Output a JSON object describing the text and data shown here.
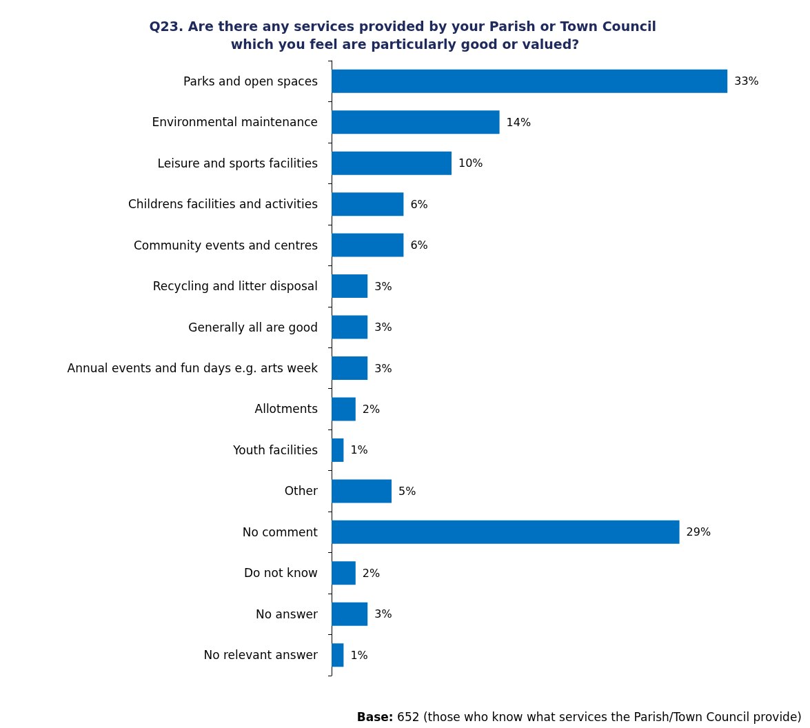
{
  "chart_data": {
    "type": "bar",
    "orientation": "horizontal",
    "title": "Q23. Are there any services provided by your Parish or Town Council which you feel are particularly good or valued?",
    "categories": [
      "Parks and open spaces",
      "Environmental maintenance",
      "Leisure and sports facilities",
      "Childrens facilities and activities",
      "Community events and centres",
      "Recycling and litter disposal",
      "Generally all are good",
      "Annual events and fun days e.g. arts week",
      "Allotments",
      "Youth facilities",
      "Other",
      "No comment",
      "Do not know",
      "No answer",
      "No relevant answer"
    ],
    "values": [
      33,
      14,
      10,
      6,
      6,
      3,
      3,
      3,
      2,
      1,
      5,
      29,
      2,
      3,
      1
    ],
    "value_labels": [
      "33%",
      "14%",
      "10%",
      "6%",
      "6%",
      "3%",
      "3%",
      "3%",
      "2%",
      "1%",
      "5%",
      "29%",
      "2%",
      "3%",
      "1%"
    ],
    "color": "#0070c0",
    "grid": false,
    "annotations": [
      "Base: 652 (those who know what services the Parish/Town Council provide)"
    ]
  }
}
